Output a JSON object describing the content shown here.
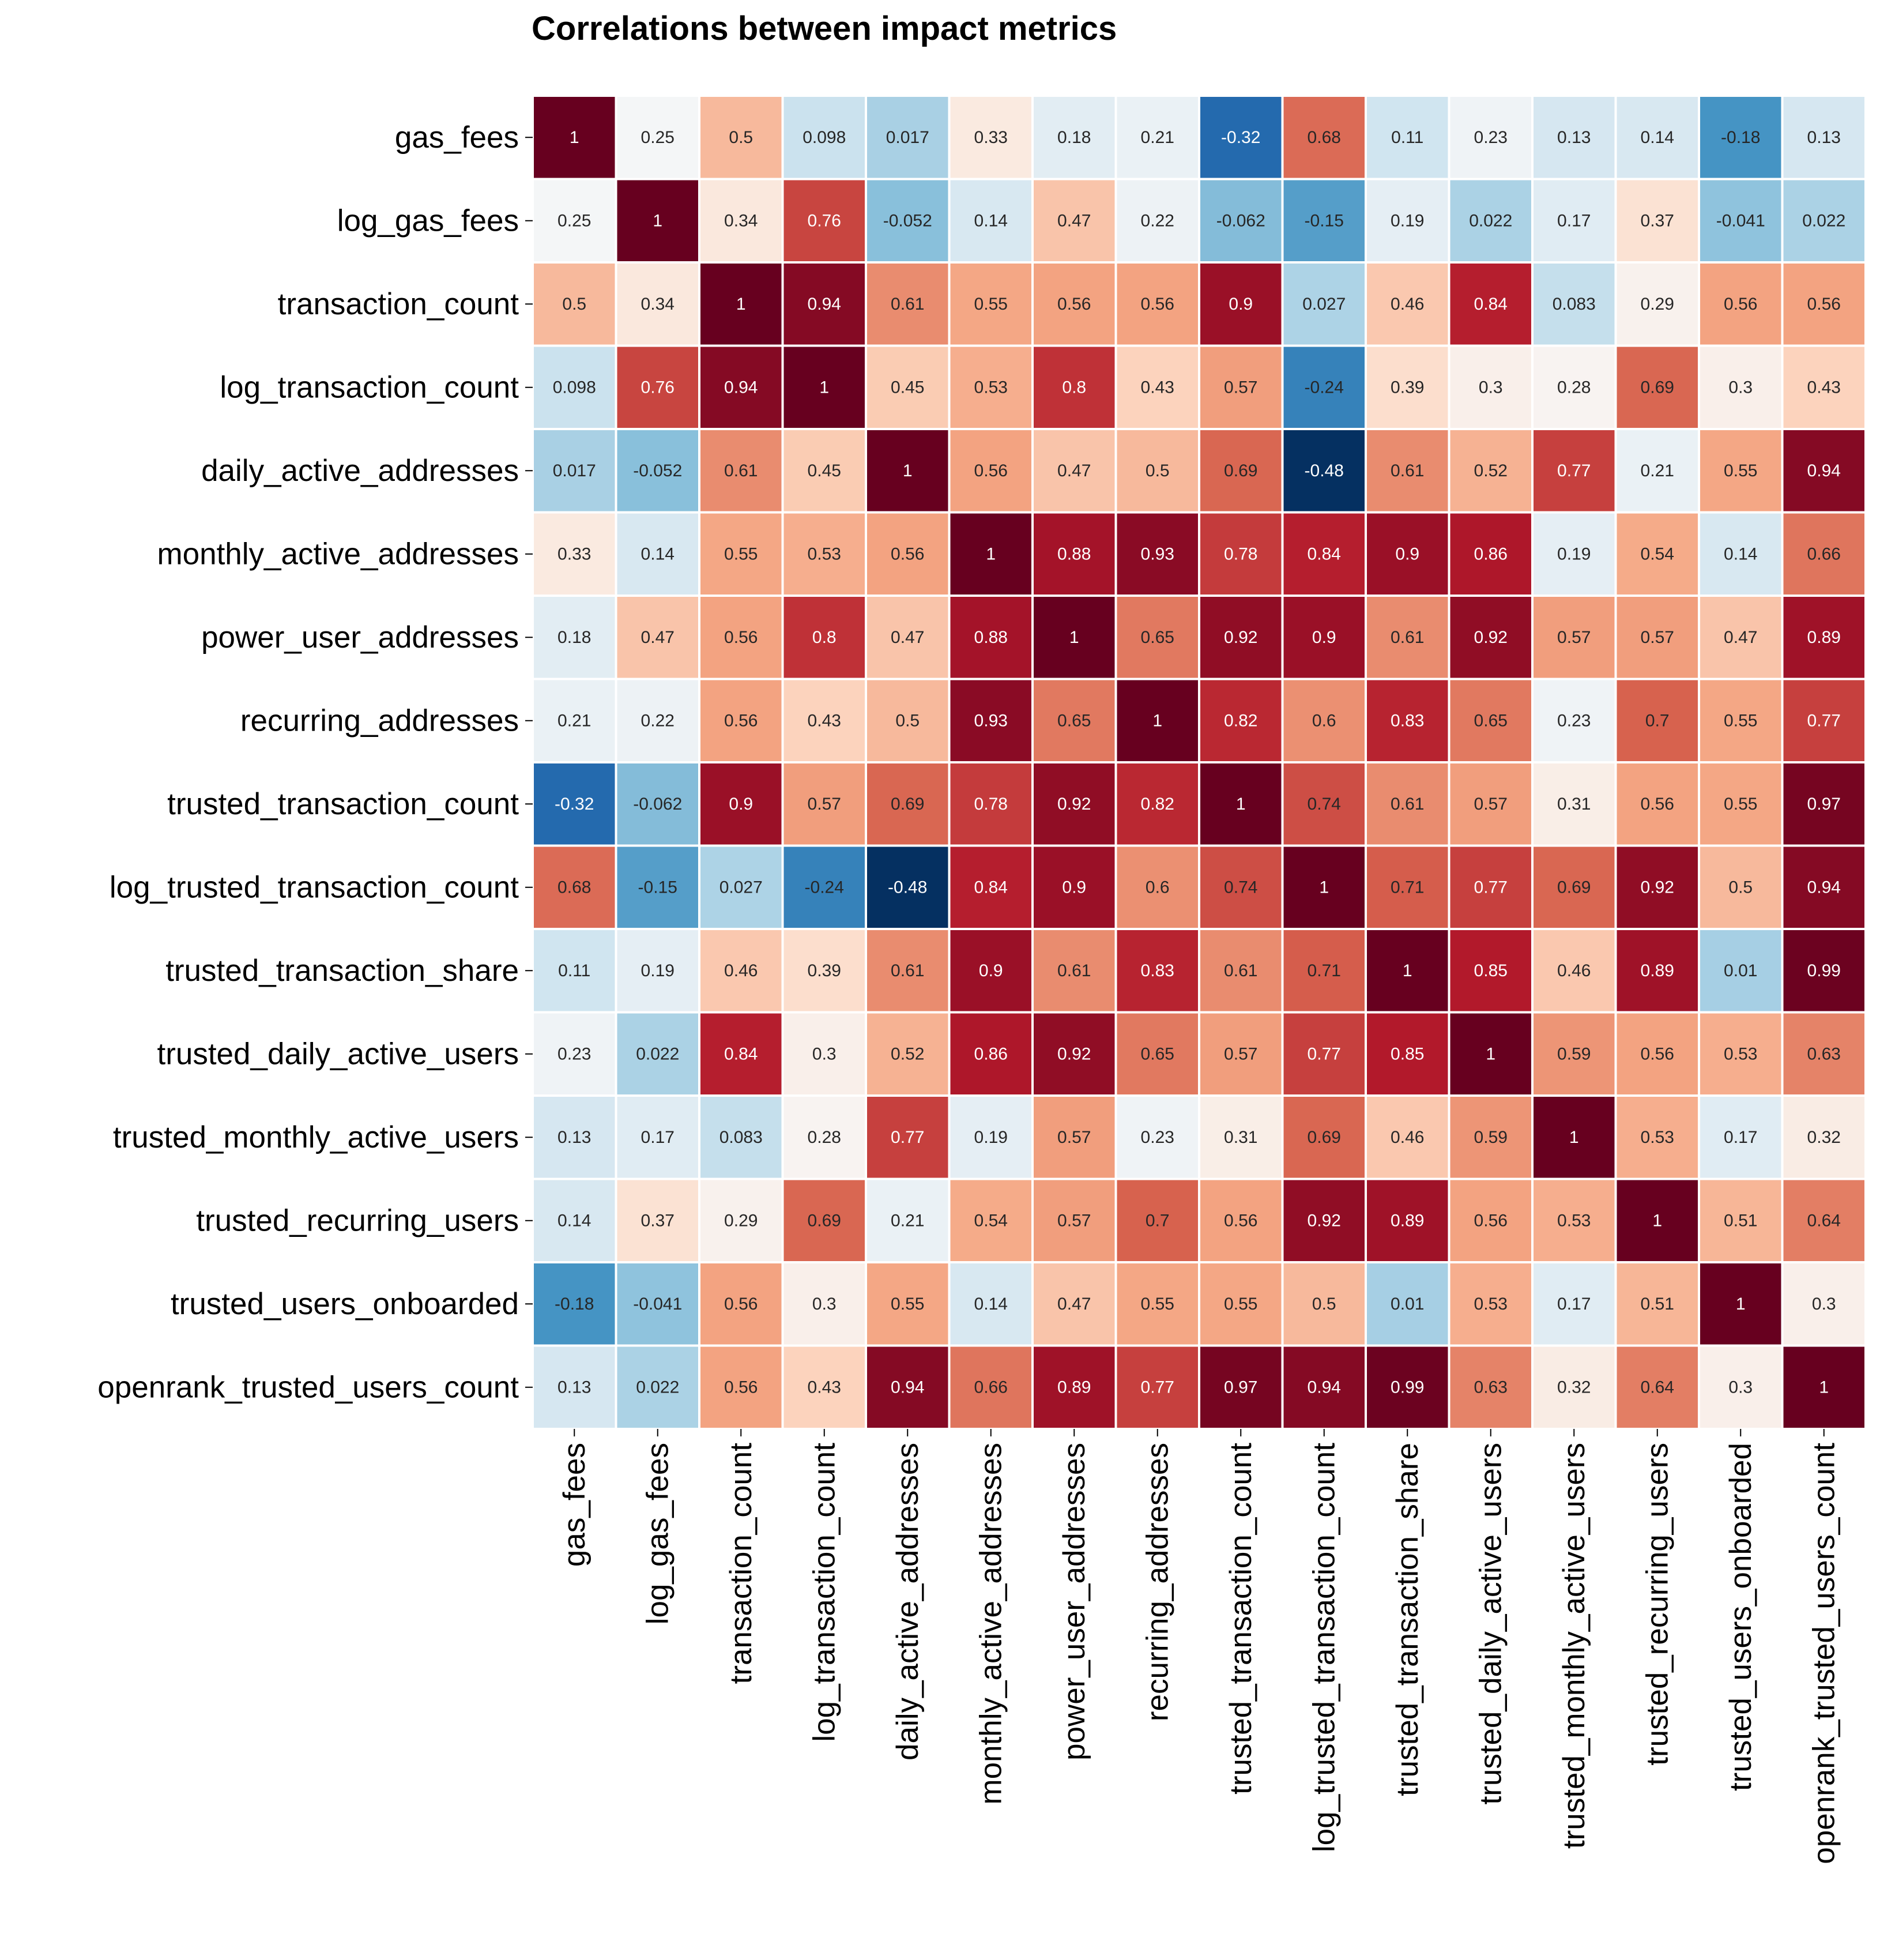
{
  "chart_data": {
    "type": "heatmap",
    "title": "Correlations between impact metrics",
    "row_labels": [
      "gas_fees",
      "log_gas_fees",
      "transaction_count",
      "log_transaction_count",
      "daily_active_addresses",
      "monthly_active_addresses",
      "power_user_addresses",
      "recurring_addresses",
      "trusted_transaction_count",
      "log_trusted_transaction_count",
      "trusted_transaction_share",
      "trusted_daily_active_users",
      "trusted_monthly_active_users",
      "trusted_recurring_users",
      "trusted_users_onboarded",
      "openrank_trusted_users_count"
    ],
    "col_labels": [
      "gas_fees",
      "log_gas_fees",
      "transaction_count",
      "log_transaction_count",
      "daily_active_addresses",
      "monthly_active_addresses",
      "power_user_addresses",
      "recurring_addresses",
      "trusted_transaction_count",
      "log_trusted_transaction_count",
      "trusted_transaction_share",
      "trusted_daily_active_users",
      "trusted_monthly_active_users",
      "trusted_recurring_users",
      "trusted_users_onboarded",
      "openrank_trusted_users_count"
    ],
    "values": [
      [
        "1",
        "0.25",
        "0.5",
        "0.098",
        "0.017",
        "0.33",
        "0.18",
        "0.21",
        "-0.32",
        "0.68",
        "0.11",
        "0.23",
        "0.13",
        "0.14",
        "-0.18",
        "0.13"
      ],
      [
        "0.25",
        "1",
        "0.34",
        "0.76",
        "-0.052",
        "0.14",
        "0.47",
        "0.22",
        "-0.062",
        "-0.15",
        "0.19",
        "0.022",
        "0.17",
        "0.37",
        "-0.041",
        "0.022"
      ],
      [
        "0.5",
        "0.34",
        "1",
        "0.94",
        "0.61",
        "0.55",
        "0.56",
        "0.56",
        "0.9",
        "0.027",
        "0.46",
        "0.84",
        "0.083",
        "0.29",
        "0.56",
        "0.56"
      ],
      [
        "0.098",
        "0.76",
        "0.94",
        "1",
        "0.45",
        "0.53",
        "0.8",
        "0.43",
        "0.57",
        "-0.24",
        "0.39",
        "0.3",
        "0.28",
        "0.69",
        "0.3",
        "0.43"
      ],
      [
        "0.017",
        "-0.052",
        "0.61",
        "0.45",
        "1",
        "0.56",
        "0.47",
        "0.5",
        "0.69",
        "-0.48",
        "0.61",
        "0.52",
        "0.77",
        "0.21",
        "0.55",
        "0.94"
      ],
      [
        "0.33",
        "0.14",
        "0.55",
        "0.53",
        "0.56",
        "1",
        "0.88",
        "0.93",
        "0.78",
        "0.84",
        "0.9",
        "0.86",
        "0.19",
        "0.54",
        "0.14",
        "0.66"
      ],
      [
        "0.18",
        "0.47",
        "0.56",
        "0.8",
        "0.47",
        "0.88",
        "1",
        "0.65",
        "0.92",
        "0.9",
        "0.61",
        "0.92",
        "0.57",
        "0.57",
        "0.47",
        "0.89"
      ],
      [
        "0.21",
        "0.22",
        "0.56",
        "0.43",
        "0.5",
        "0.93",
        "0.65",
        "1",
        "0.82",
        "0.6",
        "0.83",
        "0.65",
        "0.23",
        "0.7",
        "0.55",
        "0.77"
      ],
      [
        "-0.32",
        "-0.062",
        "0.9",
        "0.57",
        "0.69",
        "0.78",
        "0.92",
        "0.82",
        "1",
        "0.74",
        "0.61",
        "0.57",
        "0.31",
        "0.56",
        "0.55",
        "0.97"
      ],
      [
        "0.68",
        "-0.15",
        "0.027",
        "-0.24",
        "-0.48",
        "0.84",
        "0.9",
        "0.6",
        "0.74",
        "1",
        "0.71",
        "0.77",
        "0.69",
        "0.92",
        "0.5",
        "0.94"
      ],
      [
        "0.11",
        "0.19",
        "0.46",
        "0.39",
        "0.61",
        "0.9",
        "0.61",
        "0.83",
        "0.61",
        "0.71",
        "1",
        "0.85",
        "0.46",
        "0.89",
        "0.01",
        "0.99"
      ],
      [
        "0.23",
        "0.022",
        "0.84",
        "0.3",
        "0.52",
        "0.86",
        "0.92",
        "0.65",
        "0.57",
        "0.77",
        "0.85",
        "1",
        "0.59",
        "0.56",
        "0.53",
        "0.63"
      ],
      [
        "0.13",
        "0.17",
        "0.083",
        "0.28",
        "0.77",
        "0.19",
        "0.57",
        "0.23",
        "0.31",
        "0.69",
        "0.46",
        "0.59",
        "1",
        "0.53",
        "0.17",
        "0.32"
      ],
      [
        "0.14",
        "0.37",
        "0.29",
        "0.69",
        "0.21",
        "0.54",
        "0.57",
        "0.7",
        "0.56",
        "0.92",
        "0.89",
        "0.56",
        "0.53",
        "1",
        "0.51",
        "0.64"
      ],
      [
        "-0.18",
        "-0.041",
        "0.56",
        "0.3",
        "0.55",
        "0.14",
        "0.47",
        "0.55",
        "0.55",
        "0.5",
        "0.01",
        "0.53",
        "0.17",
        "0.51",
        "1",
        "0.3"
      ],
      [
        "0.13",
        "0.022",
        "0.56",
        "0.43",
        "0.94",
        "0.66",
        "0.89",
        "0.77",
        "0.97",
        "0.94",
        "0.99",
        "0.63",
        "0.32",
        "0.64",
        "0.3",
        "1"
      ]
    ],
    "color_scale": {
      "name": "RdBu_r",
      "range": [
        -0.48,
        1
      ],
      "colors": [
        "#053061",
        "#2166ac",
        "#4393c3",
        "#92c5de",
        "#d1e5f0",
        "#f7f7f7",
        "#fddbc7",
        "#f4a582",
        "#d6604d",
        "#b2182b",
        "#67001f"
      ]
    },
    "annotations": true,
    "grid_line_color": "#ffffff",
    "colorbar": false
  }
}
